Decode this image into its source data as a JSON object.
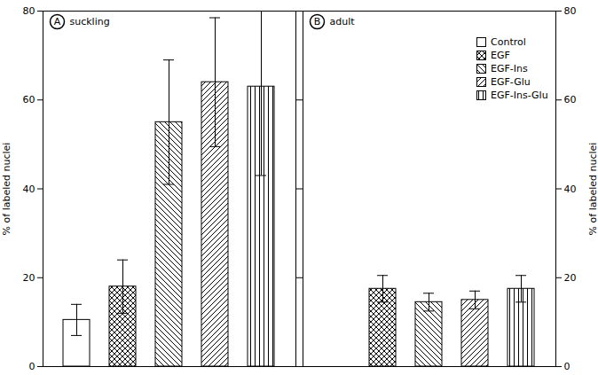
{
  "chart_data": [
    {
      "type": "bar",
      "title": "suckling",
      "annotations": [
        "A"
      ],
      "categories": [
        "Control",
        "EGF",
        "EGF-Ins",
        "EGF-Glu",
        "EGF-Ins-Glu"
      ],
      "values": [
        10.5,
        18,
        55,
        64,
        63
      ],
      "errors": [
        3.5,
        6,
        14,
        14.5,
        20
      ],
      "color": "#000000",
      "ylabel": "% of labeled nuclei",
      "ylim": [
        0,
        80
      ],
      "yticks": [
        0,
        20,
        40,
        60,
        80
      ],
      "tick_labels": "y"
    },
    {
      "type": "bar",
      "title": "adult",
      "annotations": [
        "B"
      ],
      "categories": [
        "Control",
        "EGF",
        "EGF-Ins",
        "EGF-Glu",
        "EGF-Ins-Glu"
      ],
      "values": [
        null,
        17.5,
        14.5,
        15,
        17.5
      ],
      "errors": [
        null,
        3,
        2,
        2,
        3
      ],
      "color": "#000000",
      "ylabel": "% of labeled nuclei",
      "ylim": [
        0,
        80
      ],
      "yticks": [
        0,
        20,
        40,
        60,
        80
      ],
      "tick_labels": "y",
      "legend": "upper right"
    }
  ]
}
